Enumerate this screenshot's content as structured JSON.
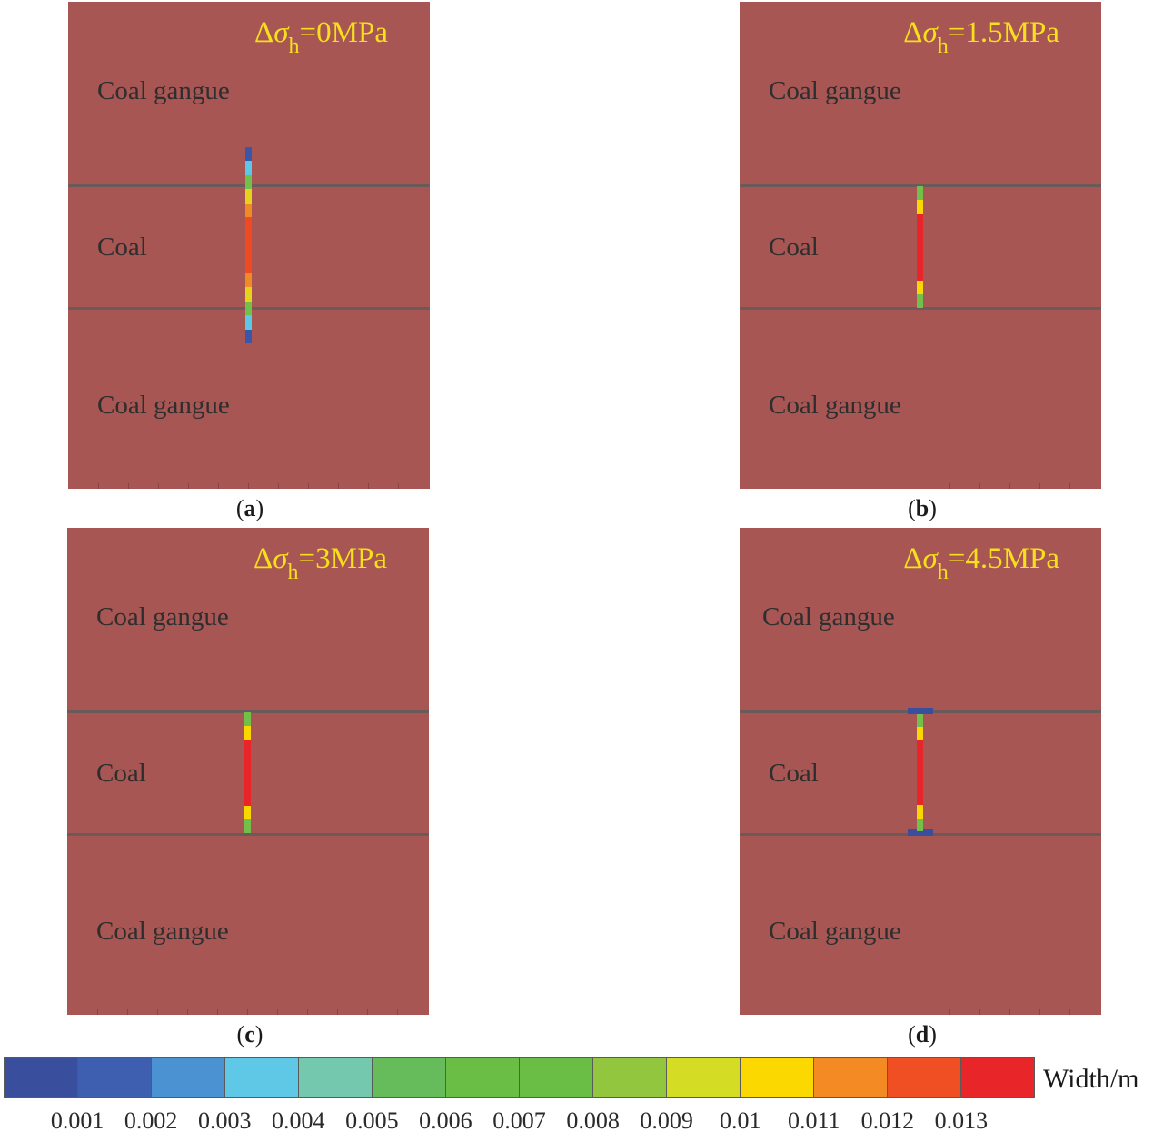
{
  "panels": [
    {
      "caption_letter": "a",
      "title": {
        "delta": "Δ",
        "sigma": "σ",
        "sub": "h",
        "value": "=0MPa"
      },
      "layers": {
        "top": "Coal gangue",
        "middle": "Coal",
        "bottom": "Coal gangue"
      },
      "fracture_colors_top_to_bottom": [
        "#3a56a8",
        "#5bc8e6",
        "#72c04a",
        "#e6d21c",
        "#f08a24",
        "#f04a23",
        "#f04a23",
        "#f04a23",
        "#f04a23",
        "#f08a24",
        "#e6d21c",
        "#72c04a",
        "#5bc8e6",
        "#3a56a8"
      ]
    },
    {
      "caption_letter": "b",
      "title": {
        "delta": "Δ",
        "sigma": "σ",
        "sub": "h",
        "value": "=1.5MPa"
      },
      "layers": {
        "top": "Coal gangue",
        "middle": "Coal",
        "bottom": "Coal gangue"
      },
      "fracture_colors_top_to_bottom": [
        "#72c04a",
        "#f8d800",
        "#e8262a",
        "#e8262a",
        "#e8262a",
        "#e8262a",
        "#e8262a",
        "#f8d800",
        "#72c04a"
      ]
    },
    {
      "caption_letter": "c",
      "title": {
        "delta": "Δ",
        "sigma": "σ",
        "sub": "h",
        "value": "=3MPa"
      },
      "layers": {
        "top": "Coal gangue",
        "middle": "Coal",
        "bottom": "Coal gangue"
      },
      "fracture_colors_top_to_bottom": [
        "#72c04a",
        "#f8d800",
        "#e8262a",
        "#e8262a",
        "#e8262a",
        "#e8262a",
        "#e8262a",
        "#f8d800",
        "#72c04a"
      ]
    },
    {
      "caption_letter": "d",
      "title": {
        "delta": "Δ",
        "sigma": "σ",
        "sub": "h",
        "value": "=4.5MPa"
      },
      "layers": {
        "top": "Coal gangue",
        "middle": "Coal",
        "bottom": "Coal gangue"
      },
      "fracture_colors_top_to_bottom": [
        "#72c04a",
        "#f8d800",
        "#e8262a",
        "#e8262a",
        "#e8262a",
        "#e8262a",
        "#e8262a",
        "#f8d800",
        "#72c04a"
      ],
      "interface_caps": true
    }
  ],
  "colorbar": {
    "title": "Width/m",
    "colors": [
      "#3a4e9e",
      "#3e5fb0",
      "#4a92d2",
      "#5fc8e6",
      "#74c8ad",
      "#66bc5a",
      "#6abd45",
      "#6abd45",
      "#92c63f",
      "#d4dc24",
      "#fbd800",
      "#f48a24",
      "#ef4f23",
      "#e8262a"
    ],
    "tick_labels": [
      "0.001",
      "0.002",
      "0.003",
      "0.004",
      "0.005",
      "0.006",
      "0.007",
      "0.008",
      "0.009",
      "0.01",
      "0.011",
      "0.012",
      "0.013"
    ]
  }
}
